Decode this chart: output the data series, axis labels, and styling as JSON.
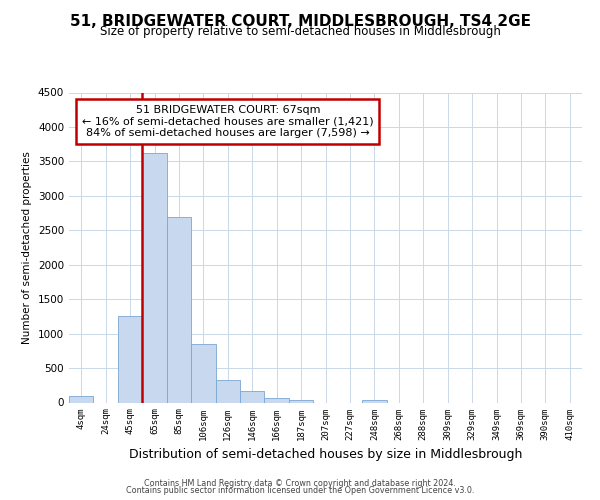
{
  "title": "51, BRIDGEWATER COURT, MIDDLESBROUGH, TS4 2GE",
  "subtitle": "Size of property relative to semi-detached houses in Middlesbrough",
  "xlabel": "Distribution of semi-detached houses by size in Middlesbrough",
  "ylabel": "Number of semi-detached properties",
  "annotation_line1": "51 BRIDGEWATER COURT: 67sqm",
  "annotation_line2": "← 16% of semi-detached houses are smaller (1,421)",
  "annotation_line3": "84% of semi-detached houses are larger (7,598) →",
  "footer1": "Contains HM Land Registry data © Crown copyright and database right 2024.",
  "footer2": "Contains public sector information licensed under the Open Government Licence v3.0.",
  "categories": [
    "4sqm",
    "24sqm",
    "45sqm",
    "65sqm",
    "85sqm",
    "106sqm",
    "126sqm",
    "146sqm",
    "166sqm",
    "187sqm",
    "207sqm",
    "227sqm",
    "248sqm",
    "268sqm",
    "288sqm",
    "309sqm",
    "329sqm",
    "349sqm",
    "369sqm",
    "390sqm",
    "410sqm"
  ],
  "values": [
    100,
    0,
    1250,
    3620,
    2700,
    850,
    330,
    160,
    60,
    40,
    0,
    0,
    30,
    0,
    0,
    0,
    0,
    0,
    0,
    0,
    0
  ],
  "bar_color": "#c8d9ef",
  "bar_edge_color": "#7aa6d4",
  "property_line_color": "#c00000",
  "annotation_box_edge_color": "#c00000",
  "ylim": [
    0,
    4500
  ],
  "yticks": [
    0,
    500,
    1000,
    1500,
    2000,
    2500,
    3000,
    3500,
    4000,
    4500
  ],
  "property_bin_index": 3,
  "background_color": "#ffffff",
  "grid_color": "#c8d8e8"
}
